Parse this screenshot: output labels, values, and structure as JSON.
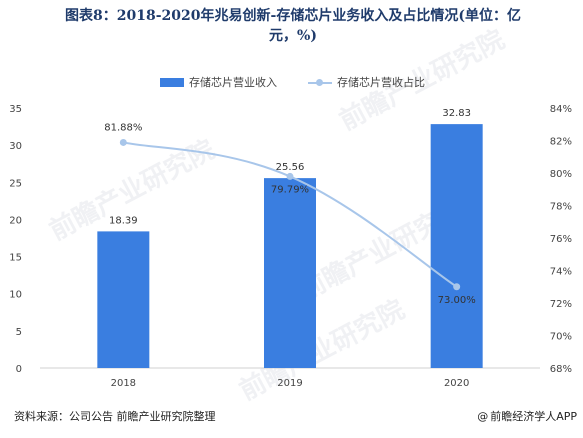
{
  "title_line1": "图表8：2018-2020年兆易创新-存储芯片业务收入及占比情况(单位：亿",
  "title_line2": "元，%)",
  "source": "资料来源：公司公告 前瞻产业研究院整理",
  "brand": "前瞻经济学人APP",
  "watermark_text": "前瞻产业研究院",
  "chart_data": {
    "type": "bar",
    "categories": [
      "2018",
      "2019",
      "2020"
    ],
    "series": [
      {
        "name": "存储芯片营业收入",
        "type": "bar",
        "axis": "left",
        "values": [
          18.39,
          25.56,
          32.83
        ],
        "labels": [
          "18.39",
          "25.56",
          "32.83"
        ],
        "color": "#3a7ee0"
      },
      {
        "name": "存储芯片营收占比",
        "type": "line",
        "axis": "right",
        "values": [
          81.88,
          79.79,
          73.0
        ],
        "labels": [
          "81.88%",
          "79.79%",
          "73.00%"
        ],
        "color": "#a8c6ea"
      }
    ],
    "y_left": {
      "min": 0,
      "max": 35,
      "ticks": [
        "0",
        "5",
        "10",
        "15",
        "20",
        "25",
        "30",
        "35"
      ]
    },
    "y_right": {
      "min": 68,
      "max": 84,
      "ticks": [
        "68%",
        "70%",
        "72%",
        "74%",
        "76%",
        "78%",
        "80%",
        "82%",
        "84%"
      ]
    },
    "grid": false,
    "legend": "top"
  }
}
